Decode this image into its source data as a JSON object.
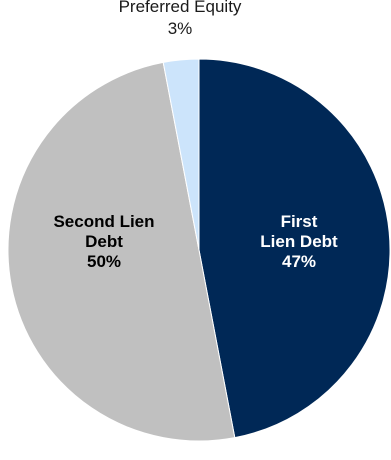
{
  "chart_data": {
    "type": "pie",
    "title": "",
    "slices": [
      {
        "name": "First Lien Debt",
        "label_lines": [
          "First",
          "Lien Debt",
          "47%"
        ],
        "value": 47,
        "color": "#002856",
        "label_color": "#ffffff",
        "label_inside": true
      },
      {
        "name": "Second Lien Debt",
        "label_lines": [
          "Second Lien",
          "Debt",
          "50%"
        ],
        "value": 50,
        "color": "#c0c0c0",
        "label_color": "#000000",
        "label_inside": true
      },
      {
        "name": "Preferred Equity",
        "label_lines": [
          "Preferred Equity",
          "3%"
        ],
        "value": 3,
        "color": "#cce4fb",
        "label_color": "#1a1a1a",
        "label_inside": false
      }
    ],
    "start_angle_deg": 0,
    "direction": "clockwise",
    "slice_border_color": "#ffffff"
  }
}
